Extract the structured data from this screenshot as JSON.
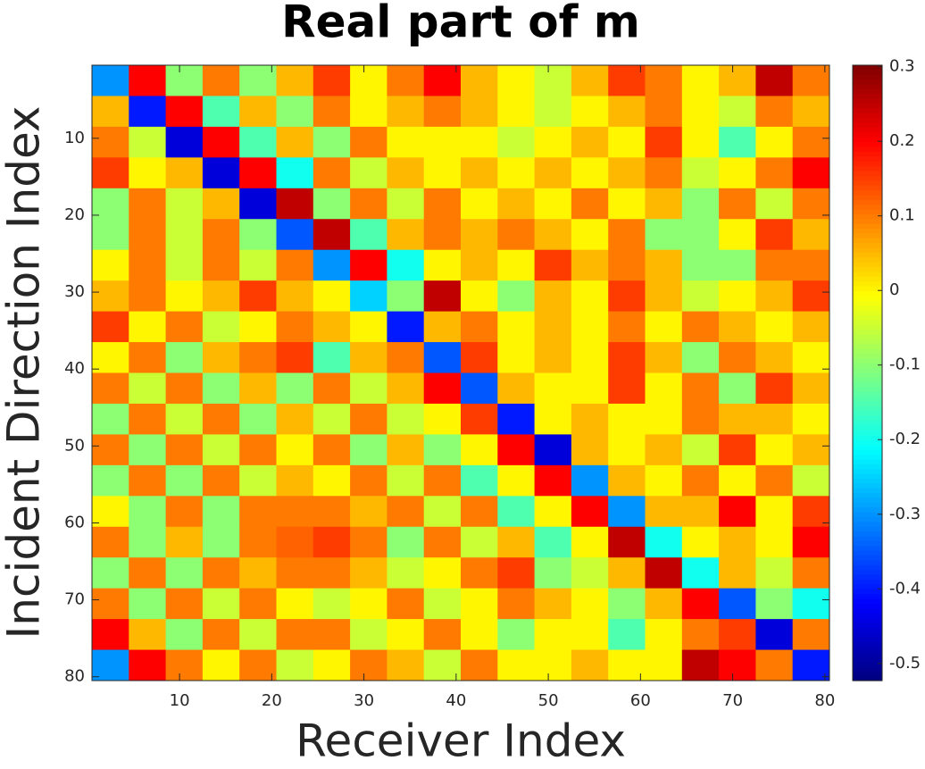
{
  "chart_data": {
    "type": "heatmap",
    "title": "Real part of m",
    "xlabel": "Receiver Index",
    "ylabel": "Incident Direction Index",
    "colormap": "jet",
    "y_reversed": true,
    "xlim": [
      0.5,
      80.5
    ],
    "ylim": [
      0.5,
      80.5
    ],
    "xticks": [
      10,
      20,
      30,
      40,
      50,
      60,
      70,
      80
    ],
    "yticks": [
      10,
      20,
      30,
      40,
      50,
      60,
      70,
      80
    ],
    "clim": [
      -0.523,
      0.302
    ],
    "cticks": [
      -0.5,
      -0.4,
      -0.3,
      -0.2,
      -0.1,
      0,
      0.1,
      0.2,
      0.3
    ],
    "x": [
      2.5,
      6.5,
      10.5,
      14.5,
      18.5,
      22.5,
      26.5,
      30.5,
      34.5,
      38.5,
      42.5,
      46.5,
      50.5,
      54.5,
      58.5,
      62.5,
      66.5,
      70.5,
      74.5,
      78.5
    ],
    "y": [
      2.5,
      6.5,
      10.5,
      14.5,
      18.5,
      22.5,
      26.5,
      30.5,
      34.5,
      38.5,
      42.5,
      46.5,
      50.5,
      54.5,
      58.5,
      62.5,
      66.5,
      70.5,
      74.5,
      78.5
    ],
    "z": [
      [
        -0.3,
        0.2,
        -0.1,
        0.1,
        -0.1,
        0.05,
        0.15,
        0,
        0.1,
        0.2,
        0.05,
        0,
        -0.05,
        0.05,
        0.15,
        0.1,
        0,
        0.05,
        0.25,
        0.1
      ],
      [
        0.05,
        -0.4,
        0.2,
        -0.15,
        0.05,
        -0.1,
        0.1,
        0,
        0.05,
        0.1,
        0.05,
        0,
        -0.05,
        0,
        0.05,
        0.1,
        0,
        -0.05,
        0.1,
        0.05
      ],
      [
        0.1,
        -0.05,
        -0.45,
        0.2,
        -0.15,
        0.05,
        -0.1,
        0.1,
        0,
        0,
        0,
        -0.05,
        0,
        0.05,
        0,
        0.15,
        0,
        -0.15,
        0,
        0.1
      ],
      [
        0.15,
        0,
        0.05,
        -0.45,
        0.2,
        -0.2,
        0.1,
        -0.05,
        0.05,
        0,
        0.05,
        0,
        0.05,
        0,
        0.05,
        0.1,
        -0.05,
        0,
        0.1,
        0.2
      ],
      [
        -0.1,
        0.1,
        -0.05,
        0.05,
        -0.45,
        0.25,
        -0.1,
        0.1,
        -0.05,
        0.1,
        0,
        0.05,
        0,
        0.1,
        0,
        0.05,
        -0.1,
        0.1,
        -0.05,
        0.1
      ],
      [
        -0.1,
        0.1,
        -0.05,
        0.1,
        -0.1,
        -0.35,
        0.25,
        -0.15,
        0.05,
        0.1,
        0.05,
        0.1,
        0.05,
        0,
        0.1,
        -0.1,
        -0.1,
        0,
        0.15,
        0.05
      ],
      [
        0,
        0.1,
        -0.05,
        0.1,
        -0.05,
        0.1,
        -0.3,
        0.2,
        -0.2,
        0,
        0.05,
        0,
        0.15,
        0.05,
        0.1,
        0.05,
        -0.1,
        -0.1,
        0.1,
        0.1
      ],
      [
        0.05,
        0.1,
        0,
        0.05,
        0.15,
        0.05,
        0,
        -0.25,
        -0.1,
        0.25,
        0,
        -0.1,
        0.05,
        0,
        0.15,
        0.05,
        -0.05,
        0,
        0.05,
        0.15
      ],
      [
        0.15,
        0,
        0.1,
        -0.05,
        0,
        0.1,
        0.05,
        0,
        -0.4,
        0.05,
        0.1,
        0,
        0.05,
        0,
        0.1,
        0,
        0.1,
        0.05,
        0,
        0.05
      ],
      [
        0,
        0.1,
        -0.1,
        0.05,
        0.1,
        0.15,
        -0.15,
        0.05,
        0.1,
        -0.35,
        0.15,
        0,
        0.05,
        0,
        0.15,
        0.05,
        -0.1,
        0.1,
        0.05,
        0
      ],
      [
        0.1,
        -0.05,
        0.1,
        -0.1,
        0.05,
        -0.1,
        0.1,
        -0.05,
        0.05,
        0.2,
        -0.35,
        0.05,
        0,
        0,
        0.15,
        0,
        0.1,
        -0.1,
        0.15,
        0.05
      ],
      [
        -0.1,
        0.1,
        -0.05,
        0.1,
        -0.1,
        0.05,
        -0.05,
        0.1,
        -0.05,
        0,
        0.15,
        -0.4,
        0,
        0.05,
        0,
        0,
        0.1,
        0.05,
        0.05,
        0
      ],
      [
        0.1,
        -0.1,
        0.1,
        -0.05,
        0.1,
        0,
        0.1,
        -0.1,
        0.05,
        -0.1,
        0,
        0.2,
        -0.45,
        0.05,
        0,
        0.05,
        -0.05,
        0.15,
        0,
        0.05
      ],
      [
        -0.1,
        0.1,
        -0.1,
        0.1,
        -0.05,
        0.05,
        0,
        0.1,
        -0.05,
        0.1,
        -0.15,
        0,
        0.2,
        -0.3,
        0.05,
        0,
        0.1,
        0,
        0.1,
        -0.05
      ],
      [
        0,
        -0.1,
        0.1,
        -0.1,
        0.1,
        0.1,
        0.1,
        0.05,
        0.1,
        -0.05,
        0.1,
        -0.15,
        0,
        0.2,
        -0.3,
        0.05,
        0.05,
        0.2,
        0,
        0.15
      ],
      [
        0.1,
        -0.1,
        0.05,
        -0.1,
        0.1,
        0.12,
        0.15,
        0.1,
        -0.1,
        0.1,
        -0.05,
        0.05,
        -0.15,
        0,
        0.25,
        -0.2,
        0,
        0.05,
        0,
        0.2
      ],
      [
        -0.1,
        0.1,
        -0.1,
        0.1,
        0.05,
        0.1,
        0.1,
        0.05,
        -0.05,
        0,
        0.1,
        0.15,
        -0.1,
        -0.05,
        0.05,
        0.25,
        -0.2,
        0.05,
        -0.05,
        0.1
      ],
      [
        0.1,
        -0.1,
        0.1,
        -0.05,
        0.1,
        0,
        -0.05,
        0,
        0.1,
        -0.05,
        0,
        0.1,
        0.05,
        0,
        -0.1,
        0.05,
        0.2,
        -0.35,
        -0.1,
        -0.2
      ],
      [
        0.2,
        0.05,
        -0.1,
        0.1,
        -0.05,
        0.1,
        0.1,
        -0.05,
        0,
        0.1,
        0,
        -0.1,
        0,
        0,
        -0.15,
        0,
        0.1,
        0.15,
        -0.45,
        0.1
      ],
      [
        -0.3,
        0.2,
        0.1,
        0,
        0.1,
        -0.05,
        0,
        0.1,
        0.05,
        -0.05,
        0.1,
        0,
        0,
        0.05,
        0,
        0,
        0.25,
        0.2,
        0.1,
        -0.4
      ]
    ]
  }
}
